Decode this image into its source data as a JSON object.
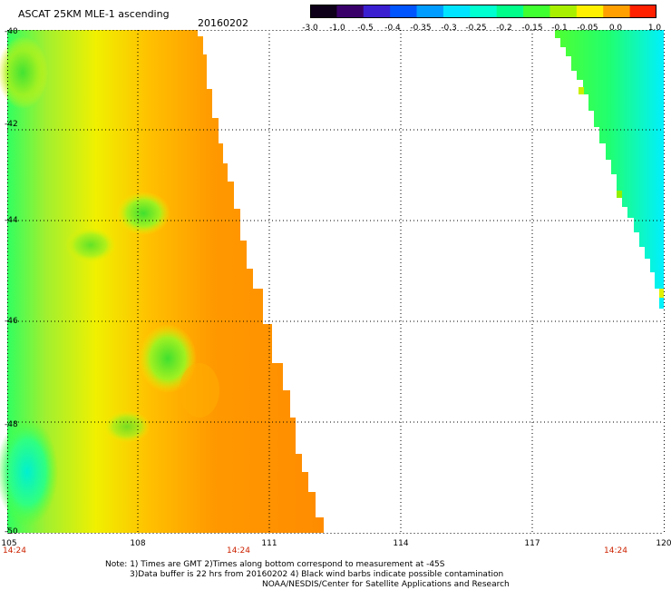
{
  "header": {
    "title": "ASCAT 25KM MLE-1 ascending",
    "date": "20160202"
  },
  "colorbar": {
    "labels": [
      "-3.0",
      "-1.0",
      "-0.5",
      "-0.4",
      "-0.35",
      "-0.3",
      "-0.25",
      "-0.2",
      "-0.15",
      "-0.1",
      "-0.05",
      "0.0",
      "1.0"
    ],
    "colors": [
      "#0d0018",
      "#3a006a",
      "#3a1fd0",
      "#0055ff",
      "#009cff",
      "#00e4ff",
      "#00ffd0",
      "#00ff8a",
      "#40ff30",
      "#a8f000",
      "#fff000",
      "#ffa000",
      "#ff2000"
    ]
  },
  "map": {
    "lat_labels": [
      "-40",
      "-42",
      "-44",
      "-46",
      "-48",
      "-50"
    ],
    "lon_labels": [
      "105",
      "108",
      "111",
      "114",
      "117",
      "120"
    ],
    "time_labels": [
      "14:24",
      "14:24",
      "14:24"
    ],
    "time_color": "#cc2200",
    "swaths": [
      {
        "name": "left-swath",
        "dominant": "orange-yellow with green patches"
      },
      {
        "name": "right-swath",
        "dominant": "green-cyan"
      }
    ]
  },
  "note": {
    "line1": "Note: 1) Times are GMT 2)Times along bottom correspond to measurement at -45S",
    "line2": "3)Data buffer is 22 hrs from 20160202 4) Black wind barbs indicate possible contamination",
    "line3": "NOAA/NESDIS/Center for Satellite Applications and Research"
  }
}
